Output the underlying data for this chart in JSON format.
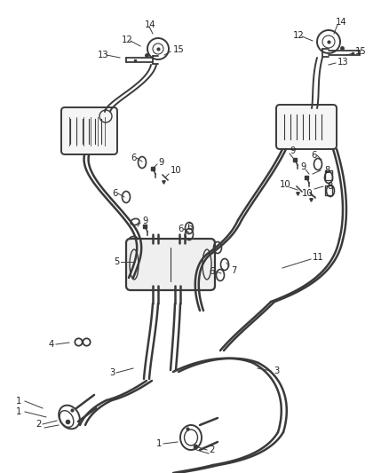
{
  "bg_color": "#ffffff",
  "line_color": "#3a3a3a",
  "label_color": "#222222",
  "fig_width": 4.38,
  "fig_height": 5.33,
  "dpi": 100,
  "lw_pipe": 1.8,
  "lw_thin": 0.9,
  "font_size": 7.0
}
